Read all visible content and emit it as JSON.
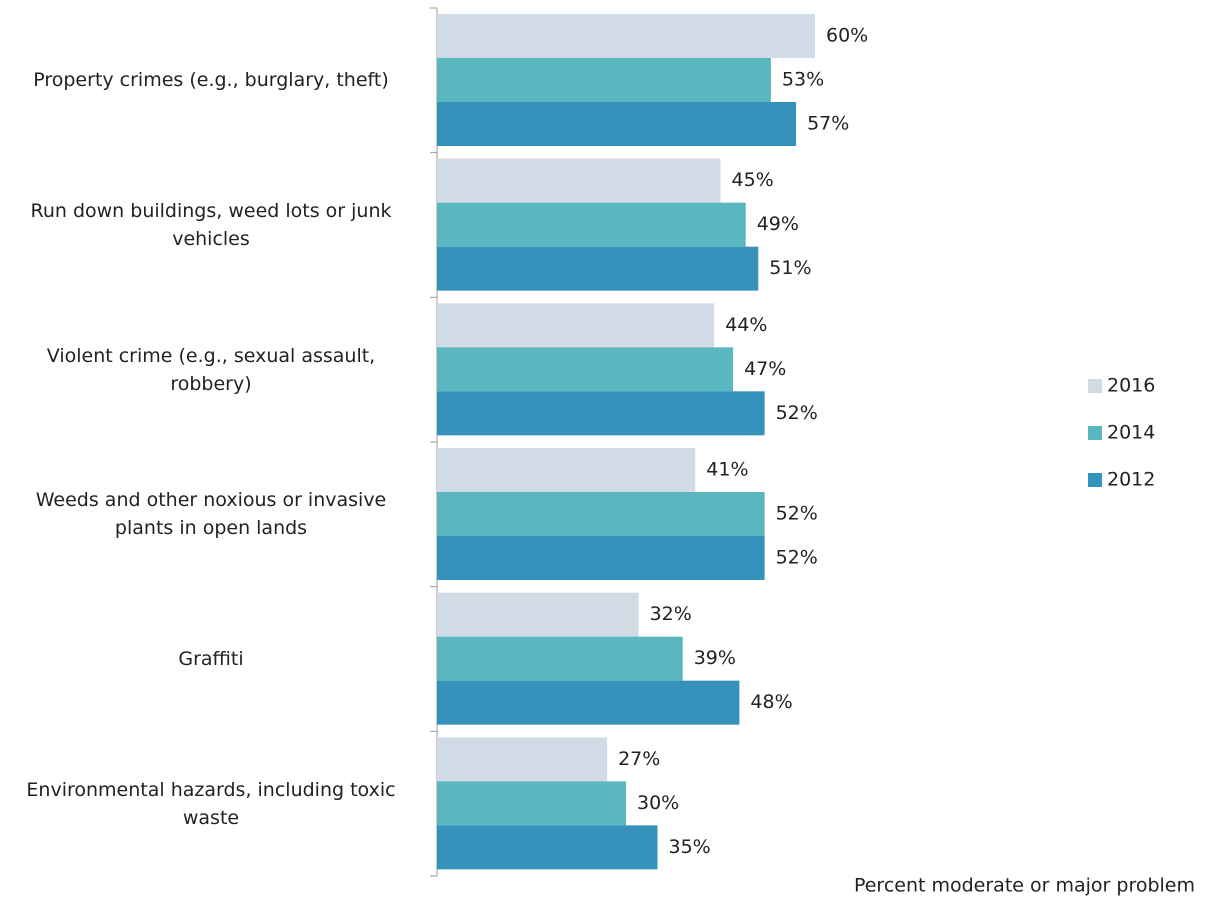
{
  "chart_data": {
    "type": "bar",
    "orientation": "horizontal",
    "x_label": "Percent moderate or major problem",
    "categories": [
      "Property crimes (e.g., burglary, theft)",
      "Run down buildings, weed lots or junk vehicles",
      "Violent crime (e.g., sexual assault, robbery)",
      "Weeds and other noxious or invasive plants in open lands",
      "Graffiti",
      "Environmental hazards, including toxic waste"
    ],
    "series": [
      {
        "name": "2016",
        "color": "#d0dbe6",
        "values": [
          60,
          45,
          44,
          41,
          32,
          27
        ],
        "value_labels": [
          "60%",
          "45%",
          "44%",
          "41%",
          "32%",
          "27%"
        ]
      },
      {
        "name": "2014",
        "color": "#5bb7bf",
        "values": [
          53,
          49,
          47,
          52,
          39,
          30
        ],
        "value_labels": [
          "53%",
          "49%",
          "47%",
          "52%",
          "39%",
          "30%"
        ]
      },
      {
        "name": "2012",
        "color": "#3592bb",
        "values": [
          57,
          51,
          52,
          52,
          48,
          35
        ],
        "value_labels": [
          "57%",
          "51%",
          "52%",
          "52%",
          "48%",
          "35%"
        ]
      }
    ],
    "xlim": [
      0,
      100
    ],
    "legend": "right"
  }
}
